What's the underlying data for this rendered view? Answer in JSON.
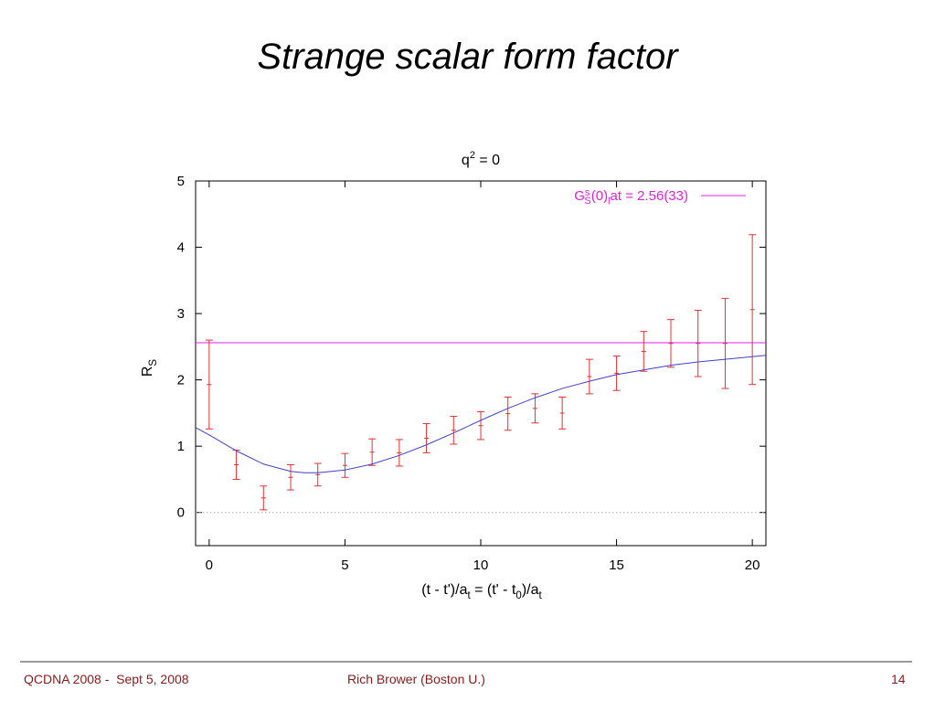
{
  "slide": {
    "title": "Strange scalar form factor",
    "footer_left": "QCDNA 2008 -  Sept 5, 2008",
    "footer_center": "Rich Brower (Boston U.)",
    "page_number": "14",
    "accent_color": "#8b1a1a",
    "rule_color": "#9a9a9a"
  },
  "chart_data": {
    "type": "scatter",
    "title": "q² = 0",
    "xlabel": "(t - t')/a_t = (t' - t_0)/a_t",
    "ylabel": "R_S",
    "xlim": [
      -0.5,
      20.5
    ],
    "ylim": [
      -0.5,
      5
    ],
    "xticks": [
      0,
      5,
      10,
      15,
      20
    ],
    "yticks": [
      0,
      1,
      2,
      3,
      4,
      5
    ],
    "grid": false,
    "legend_position": "top-right",
    "series": [
      {
        "kind": "points_with_errorbars",
        "color": "#e83030",
        "points": [
          {
            "x": 0,
            "y": 1.93,
            "err": 0.67
          },
          {
            "x": 1,
            "y": 0.72,
            "err": 0.22
          },
          {
            "x": 2,
            "y": 0.22,
            "err": 0.18
          },
          {
            "x": 3,
            "y": 0.53,
            "err": 0.19
          },
          {
            "x": 4,
            "y": 0.57,
            "err": 0.17
          },
          {
            "x": 5,
            "y": 0.71,
            "err": 0.18
          },
          {
            "x": 6,
            "y": 0.91,
            "err": 0.2
          },
          {
            "x": 7,
            "y": 0.9,
            "err": 0.2
          },
          {
            "x": 8,
            "y": 1.12,
            "err": 0.22
          },
          {
            "x": 9,
            "y": 1.24,
            "err": 0.21
          },
          {
            "x": 10,
            "y": 1.31,
            "err": 0.21
          },
          {
            "x": 11,
            "y": 1.49,
            "err": 0.25
          },
          {
            "x": 12,
            "y": 1.57,
            "err": 0.22
          },
          {
            "x": 13,
            "y": 1.5,
            "err": 0.24
          },
          {
            "x": 14,
            "y": 2.05,
            "err": 0.26
          },
          {
            "x": 15,
            "y": 2.1,
            "err": 0.26
          },
          {
            "x": 16,
            "y": 2.43,
            "err": 0.3
          },
          {
            "x": 17,
            "y": 2.55,
            "err": 0.36
          },
          {
            "x": 18,
            "y": 2.55,
            "err": 0.5
          },
          {
            "x": 19,
            "y": 2.55,
            "err": 0.68
          },
          {
            "x": 20,
            "y": 3.06,
            "err": 1.13
          }
        ]
      },
      {
        "kind": "fit_curve",
        "color": "#4040d0",
        "x": [
          -0.5,
          0,
          1,
          2,
          3,
          3.5,
          4,
          5,
          6,
          7,
          8,
          9,
          10,
          11,
          12,
          13,
          14,
          15,
          16,
          17,
          18,
          19,
          20,
          20.5
        ],
        "y": [
          1.28,
          1.17,
          0.93,
          0.73,
          0.62,
          0.6,
          0.6,
          0.64,
          0.73,
          0.86,
          1.02,
          1.2,
          1.39,
          1.57,
          1.73,
          1.87,
          1.98,
          2.08,
          2.15,
          2.22,
          2.27,
          2.31,
          2.35,
          2.37
        ]
      },
      {
        "kind": "hline",
        "name": "G_S^s(0)_lat = 2.56(33)",
        "color": "#e020e0",
        "y": 2.56
      },
      {
        "kind": "hline_dotted",
        "color": "#aaaaaa",
        "y": 0
      }
    ]
  }
}
